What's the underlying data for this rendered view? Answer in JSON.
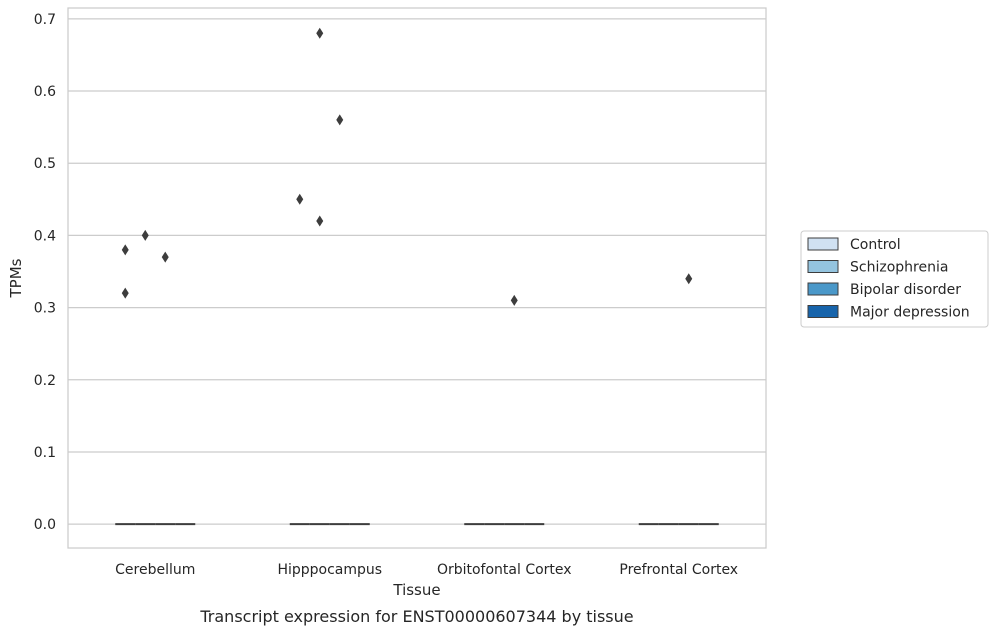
{
  "chart_data": {
    "type": "box",
    "title": "",
    "caption": "Transcript expression for ENST00000607344 by tissue",
    "xlabel": "Tissue",
    "ylabel": "TPMs",
    "categories": [
      "Cerebellum",
      "Hipppocampus",
      "Orbitofontal Cortex",
      "Prefrontal Cortex"
    ],
    "ylim": [
      -0.033,
      0.715
    ],
    "yticks": [
      0.0,
      0.1,
      0.2,
      0.3,
      0.4,
      0.5,
      0.6,
      0.7
    ],
    "ytick_labels": [
      "0.0",
      "0.1",
      "0.2",
      "0.3",
      "0.4",
      "0.5",
      "0.6",
      "0.7"
    ],
    "grid": true,
    "legend_position": "right",
    "series": [
      {
        "name": "Control",
        "color": "#d0e1f2",
        "median": [
          0,
          0,
          0,
          0
        ],
        "outliers": [
          [
            0.32,
            0.38
          ],
          [
            0.45
          ],
          [],
          []
        ]
      },
      {
        "name": "Schizophrenia",
        "color": "#94c4df",
        "median": [
          0,
          0,
          0,
          0
        ],
        "outliers": [
          [
            0.4
          ],
          [
            0.68,
            0.42
          ],
          [],
          []
        ]
      },
      {
        "name": "Bipolar disorder",
        "color": "#4a98c9",
        "median": [
          0,
          0,
          0,
          0
        ],
        "outliers": [
          [
            0.37
          ],
          [
            0.56
          ],
          [
            0.31
          ],
          [
            0.34
          ]
        ]
      },
      {
        "name": "Major depression",
        "color": "#1764ab",
        "median": [
          0,
          0,
          0,
          0
        ],
        "outliers": [
          [],
          [],
          [],
          []
        ]
      }
    ]
  }
}
